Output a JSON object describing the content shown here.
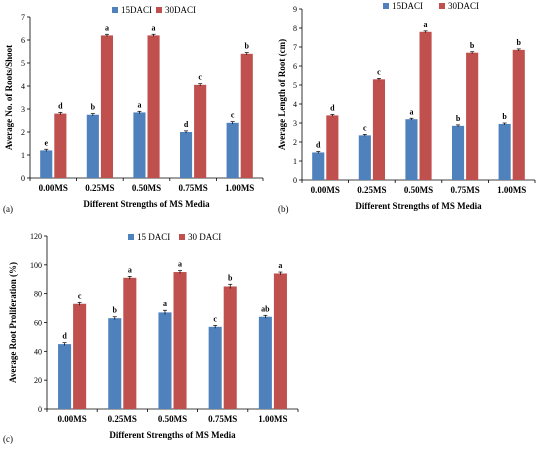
{
  "chart_data": [
    {
      "type": "bar",
      "panel_label": "(a)",
      "categories": [
        "0.00MS",
        "0.25MS",
        "0.50MS",
        "0.75MS",
        "1.00MS"
      ],
      "series": [
        {
          "name": "15DACI",
          "color": "#4f81bd",
          "values": [
            1.2,
            2.75,
            2.85,
            2.0,
            2.4
          ],
          "errors": [
            0.05,
            0.05,
            0.05,
            0.05,
            0.05
          ],
          "letters": [
            "e",
            "b",
            "a",
            "d",
            "c"
          ]
        },
        {
          "name": "30DACI",
          "color": "#c0504d",
          "values": [
            2.8,
            6.2,
            6.2,
            4.05,
            5.4
          ],
          "errors": [
            0.05,
            0.05,
            0.05,
            0.05,
            0.05
          ],
          "letters": [
            "d",
            "a",
            "a",
            "c",
            "b"
          ]
        }
      ],
      "xlabel": "Different Strengths of MS Media",
      "ylabel": "Average No. of Roots/Shoot",
      "ylim": [
        0,
        7
      ],
      "yticks": [
        0,
        1,
        2,
        3,
        4,
        5,
        6,
        7
      ],
      "grid": false,
      "legend": "top"
    },
    {
      "type": "bar",
      "panel_label": "(b)",
      "categories": [
        "0.00MS",
        "0.25MS",
        "0.50MS",
        "0.75MS",
        "1.00MS"
      ],
      "series": [
        {
          "name": "15DACI",
          "color": "#4f81bd",
          "values": [
            1.45,
            2.35,
            3.2,
            2.85,
            2.95
          ],
          "errors": [
            0.05,
            0.05,
            0.05,
            0.05,
            0.05
          ],
          "letters": [
            "d",
            "c",
            "a",
            "b",
            "b"
          ]
        },
        {
          "name": "30DACI",
          "color": "#c0504d",
          "values": [
            3.4,
            5.3,
            7.8,
            6.7,
            6.85
          ],
          "errors": [
            0.05,
            0.05,
            0.05,
            0.05,
            0.05
          ],
          "letters": [
            "d",
            "c",
            "a",
            "b",
            "b"
          ]
        }
      ],
      "xlabel": "Different Strengths of MS Media",
      "ylabel": "Average Length of Root (cm)",
      "ylim": [
        0,
        9
      ],
      "yticks": [
        0,
        1,
        2,
        3,
        4,
        5,
        6,
        7,
        8,
        9
      ],
      "grid": false,
      "legend": "top"
    },
    {
      "type": "bar",
      "panel_label": "(c)",
      "categories": [
        "0.00MS",
        "0.25MS",
        "0.50MS",
        "0.75MS",
        "1.00MS"
      ],
      "series": [
        {
          "name": "15 DACI",
          "color": "#4f81bd",
          "values": [
            45,
            63,
            67,
            57,
            64
          ],
          "errors": [
            1,
            1,
            1.5,
            1,
            1
          ],
          "letters": [
            "d",
            "b",
            "a",
            "c",
            "ab"
          ]
        },
        {
          "name": "30 DACI",
          "color": "#c0504d",
          "values": [
            73,
            91,
            95,
            85,
            94
          ],
          "errors": [
            1,
            1,
            1,
            1.5,
            1
          ],
          "letters": [
            "c",
            "a",
            "a",
            "b",
            "a"
          ]
        }
      ],
      "xlabel": "Different Strengths of MS Media",
      "ylabel": "Average Root Proliferation (%)",
      "ylim": [
        0,
        120
      ],
      "yticks": [
        0,
        20,
        40,
        60,
        80,
        100,
        120
      ],
      "grid": false,
      "legend": "top"
    }
  ]
}
